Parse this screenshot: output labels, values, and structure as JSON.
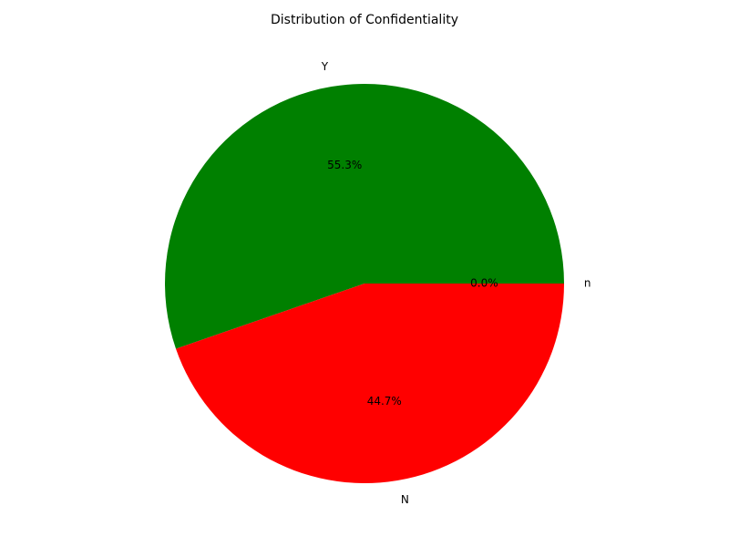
{
  "chart_data": {
    "type": "pie",
    "title": "Distribution of Confidentiality",
    "slices": [
      {
        "label": "Y",
        "value": 55.3,
        "pct_label": "55.3%",
        "color": "#008000"
      },
      {
        "label": "N",
        "value": 44.7,
        "pct_label": "44.7%",
        "color": "#ff0000"
      },
      {
        "label": "n",
        "value": 0.0,
        "pct_label": "0.0%",
        "color": "#0000ff"
      }
    ],
    "start_angle": 0,
    "direction": "counterclockwise",
    "legend": false
  }
}
